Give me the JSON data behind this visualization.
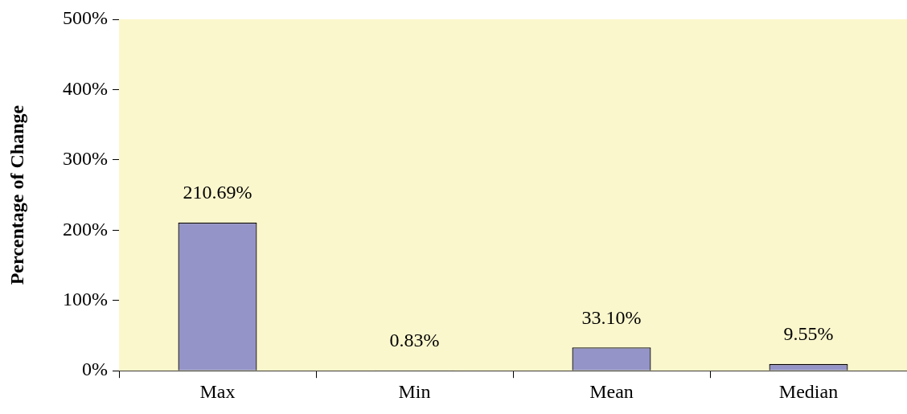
{
  "chart_data": {
    "type": "bar",
    "ylabel": "Percentage of Change",
    "categories": [
      "Max",
      "Min",
      "Mean",
      "Median"
    ],
    "values": [
      210.69,
      0.83,
      33.1,
      9.55
    ],
    "value_labels": [
      "210.69%",
      "0.83%",
      "33.10%",
      "9.55%"
    ],
    "color": "#9494c8",
    "ylim": [
      0,
      500
    ],
    "yticks": [
      {
        "value": 0,
        "label": "0%"
      },
      {
        "value": 100,
        "label": "100%"
      },
      {
        "value": 200,
        "label": "200%"
      },
      {
        "value": 300,
        "label": "300%"
      },
      {
        "value": 400,
        "label": "400%"
      },
      {
        "value": 500,
        "label": "500%"
      }
    ],
    "legend": false
  }
}
